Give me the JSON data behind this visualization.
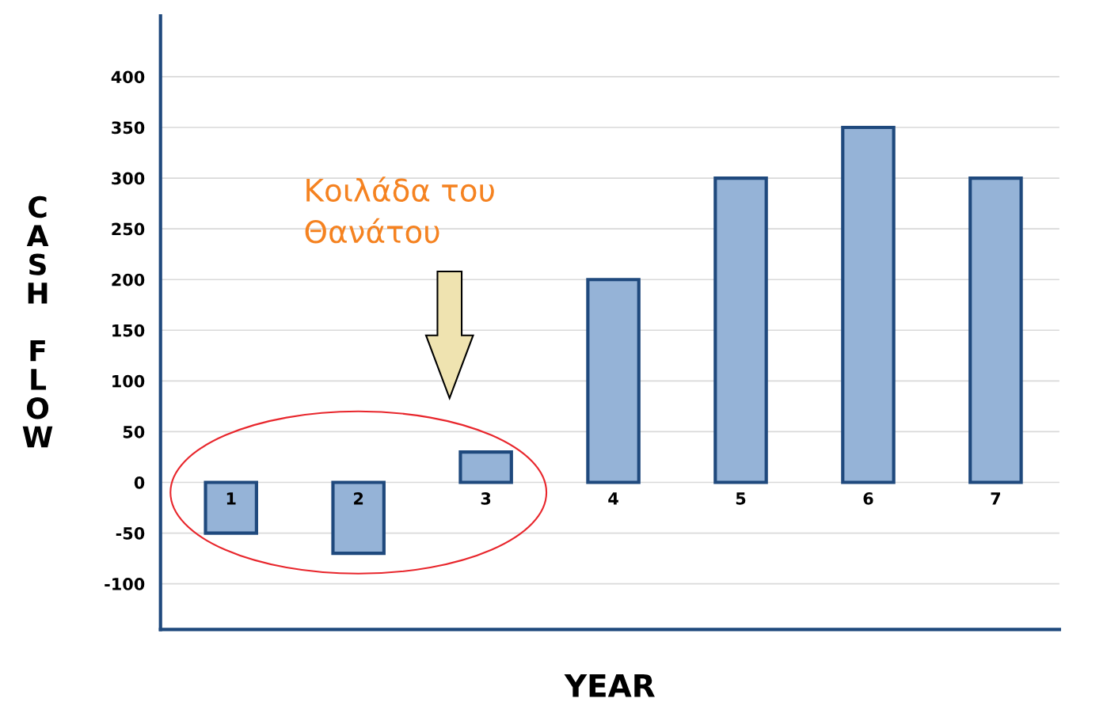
{
  "chart_data": {
    "type": "bar",
    "xlabel": "YEAR",
    "ylabel": "CASH FLOW",
    "categories": [
      "1",
      "2",
      "3",
      "4",
      "5",
      "6",
      "7"
    ],
    "values": [
      -50,
      -70,
      30,
      200,
      300,
      350,
      300
    ],
    "color": "#95b3d7",
    "ylim": [
      -145,
      460
    ],
    "yticks": [
      -100,
      -50,
      0,
      50,
      100,
      150,
      200,
      250,
      300,
      350,
      400
    ],
    "grid": "y",
    "annotations": [
      "Κοιλάδα του\nΘανάτου"
    ]
  }
}
